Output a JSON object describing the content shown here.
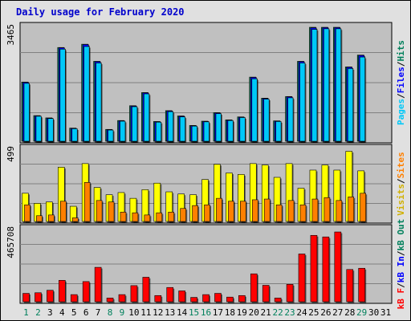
{
  "chart_data": [
    {
      "type": "bar",
      "panel": "hits-files-pages",
      "title": "Daily usage for February 2020",
      "ymax_label": "3465",
      "ylim": [
        0,
        3465
      ],
      "categories": [
        "1",
        "2",
        "3",
        "4",
        "5",
        "6",
        "7",
        "8",
        "9",
        "10",
        "11",
        "12",
        "13",
        "14",
        "15",
        "16",
        "17",
        "18",
        "19",
        "20",
        "21",
        "22",
        "23",
        "24",
        "25",
        "26",
        "27",
        "28",
        "29",
        "30",
        "31"
      ],
      "series": [
        {
          "name": "Hits",
          "color": "#00805c",
          "values": [
            1800,
            780,
            710,
            2850,
            400,
            2950,
            2430,
            360,
            630,
            1080,
            1480,
            600,
            930,
            770,
            480,
            610,
            870,
            650,
            740,
            1950,
            1310,
            620,
            1360,
            2430,
            3465,
            3465,
            3465,
            2260,
            2620,
            0,
            0
          ]
        },
        {
          "name": "Files",
          "color": "#0000ff",
          "values": [
            1790,
            770,
            700,
            2840,
            390,
            2940,
            2420,
            350,
            620,
            1070,
            1470,
            590,
            920,
            760,
            470,
            600,
            860,
            640,
            730,
            1940,
            1300,
            610,
            1350,
            2420,
            3450,
            3455,
            3455,
            2250,
            2610,
            0,
            0
          ]
        },
        {
          "name": "Pages",
          "color": "#00c8f8",
          "values": [
            1760,
            760,
            690,
            2800,
            380,
            2880,
            2380,
            340,
            610,
            1050,
            1440,
            580,
            900,
            740,
            460,
            590,
            840,
            630,
            720,
            1900,
            1280,
            600,
            1320,
            2380,
            3400,
            3420,
            3420,
            2210,
            2560,
            0,
            0
          ]
        }
      ],
      "legend": [
        "Pages",
        "/",
        "Files",
        "/",
        "Hits"
      ]
    },
    {
      "type": "bar",
      "panel": "visits-sites",
      "ymax_label": "499",
      "ylim": [
        0,
        499
      ],
      "categories": [
        "1",
        "2",
        "3",
        "4",
        "5",
        "6",
        "7",
        "8",
        "9",
        "10",
        "11",
        "12",
        "13",
        "14",
        "15",
        "16",
        "17",
        "18",
        "19",
        "20",
        "21",
        "22",
        "23",
        "24",
        "25",
        "26",
        "27",
        "28",
        "29",
        "30",
        "31"
      ],
      "series": [
        {
          "name": "Visits",
          "color": "#ffff00",
          "values": [
            195,
            125,
            135,
            375,
            105,
            400,
            235,
            185,
            200,
            160,
            220,
            265,
            205,
            190,
            185,
            290,
            395,
            335,
            325,
            400,
            390,
            305,
            400,
            230,
            355,
            390,
            355,
            485,
            350,
            0,
            0
          ]
        },
        {
          "name": "Sites",
          "color": "#ff8000",
          "values": [
            115,
            40,
            45,
            140,
            25,
            270,
            145,
            135,
            65,
            60,
            45,
            60,
            65,
            90,
            110,
            115,
            160,
            140,
            140,
            150,
            155,
            115,
            145,
            115,
            155,
            165,
            145,
            170,
            195,
            0,
            0
          ]
        }
      ],
      "legend": [
        "Visits",
        "/",
        "Sites"
      ]
    },
    {
      "type": "bar",
      "panel": "kbytes",
      "ymax_label": "465708",
      "ylim": [
        0,
        465708
      ],
      "categories": [
        "1",
        "2",
        "3",
        "4",
        "5",
        "6",
        "7",
        "8",
        "9",
        "10",
        "11",
        "12",
        "13",
        "14",
        "15",
        "16",
        "17",
        "18",
        "19",
        "20",
        "21",
        "22",
        "23",
        "24",
        "25",
        "26",
        "27",
        "28",
        "29",
        "30",
        "31"
      ],
      "series": [
        {
          "name": "kB Out",
          "color": "#00805c",
          "values": [
            54000,
            58000,
            74000,
            138000,
            46000,
            130000,
            222000,
            24000,
            46000,
            104000,
            158000,
            40000,
            92000,
            70000,
            28000,
            46000,
            54000,
            30000,
            40000,
            180000,
            106000,
            24000,
            112000,
            308000,
            428000,
            418000,
            450000,
            208000,
            216000,
            0,
            0
          ]
        },
        {
          "name": "kB In",
          "color": "#0000ff",
          "values": [
            54000,
            58000,
            74000,
            138000,
            46000,
            130000,
            222000,
            24000,
            46000,
            104000,
            158000,
            40000,
            92000,
            70000,
            28000,
            46000,
            54000,
            30000,
            40000,
            180000,
            106000,
            24000,
            112000,
            308000,
            428000,
            418000,
            450000,
            208000,
            216000,
            0,
            0
          ]
        },
        {
          "name": "kB F",
          "color": "#ff0000",
          "values": [
            54000,
            58000,
            74000,
            138000,
            46000,
            130000,
            222000,
            24000,
            46000,
            104000,
            158000,
            40000,
            92000,
            70000,
            28000,
            46000,
            54000,
            30000,
            40000,
            180000,
            106000,
            24000,
            112000,
            308000,
            428000,
            418000,
            450000,
            208000,
            216000,
            0,
            0
          ]
        }
      ],
      "legend": [
        "kB F",
        "/",
        "kB In",
        "/",
        "kB Out"
      ]
    }
  ],
  "weekend_days": [
    1,
    2,
    8,
    9,
    15,
    16,
    22,
    23,
    29
  ],
  "colors": {
    "panel_bg": "#c0c0c0",
    "frame_bg": "#e0e0e0",
    "weekday_label": "#000000",
    "weekend_label": "#00805c",
    "legend_slash": "#000000",
    "hits": "#00805c",
    "files": "#0000ff",
    "pages": "#00c8f8",
    "visits": "#ffff00",
    "sites": "#ff8000",
    "kb_f": "#ff0000",
    "kb_in": "#0000ff",
    "kb_out": "#00805c",
    "visits_label": "#d0b000"
  }
}
